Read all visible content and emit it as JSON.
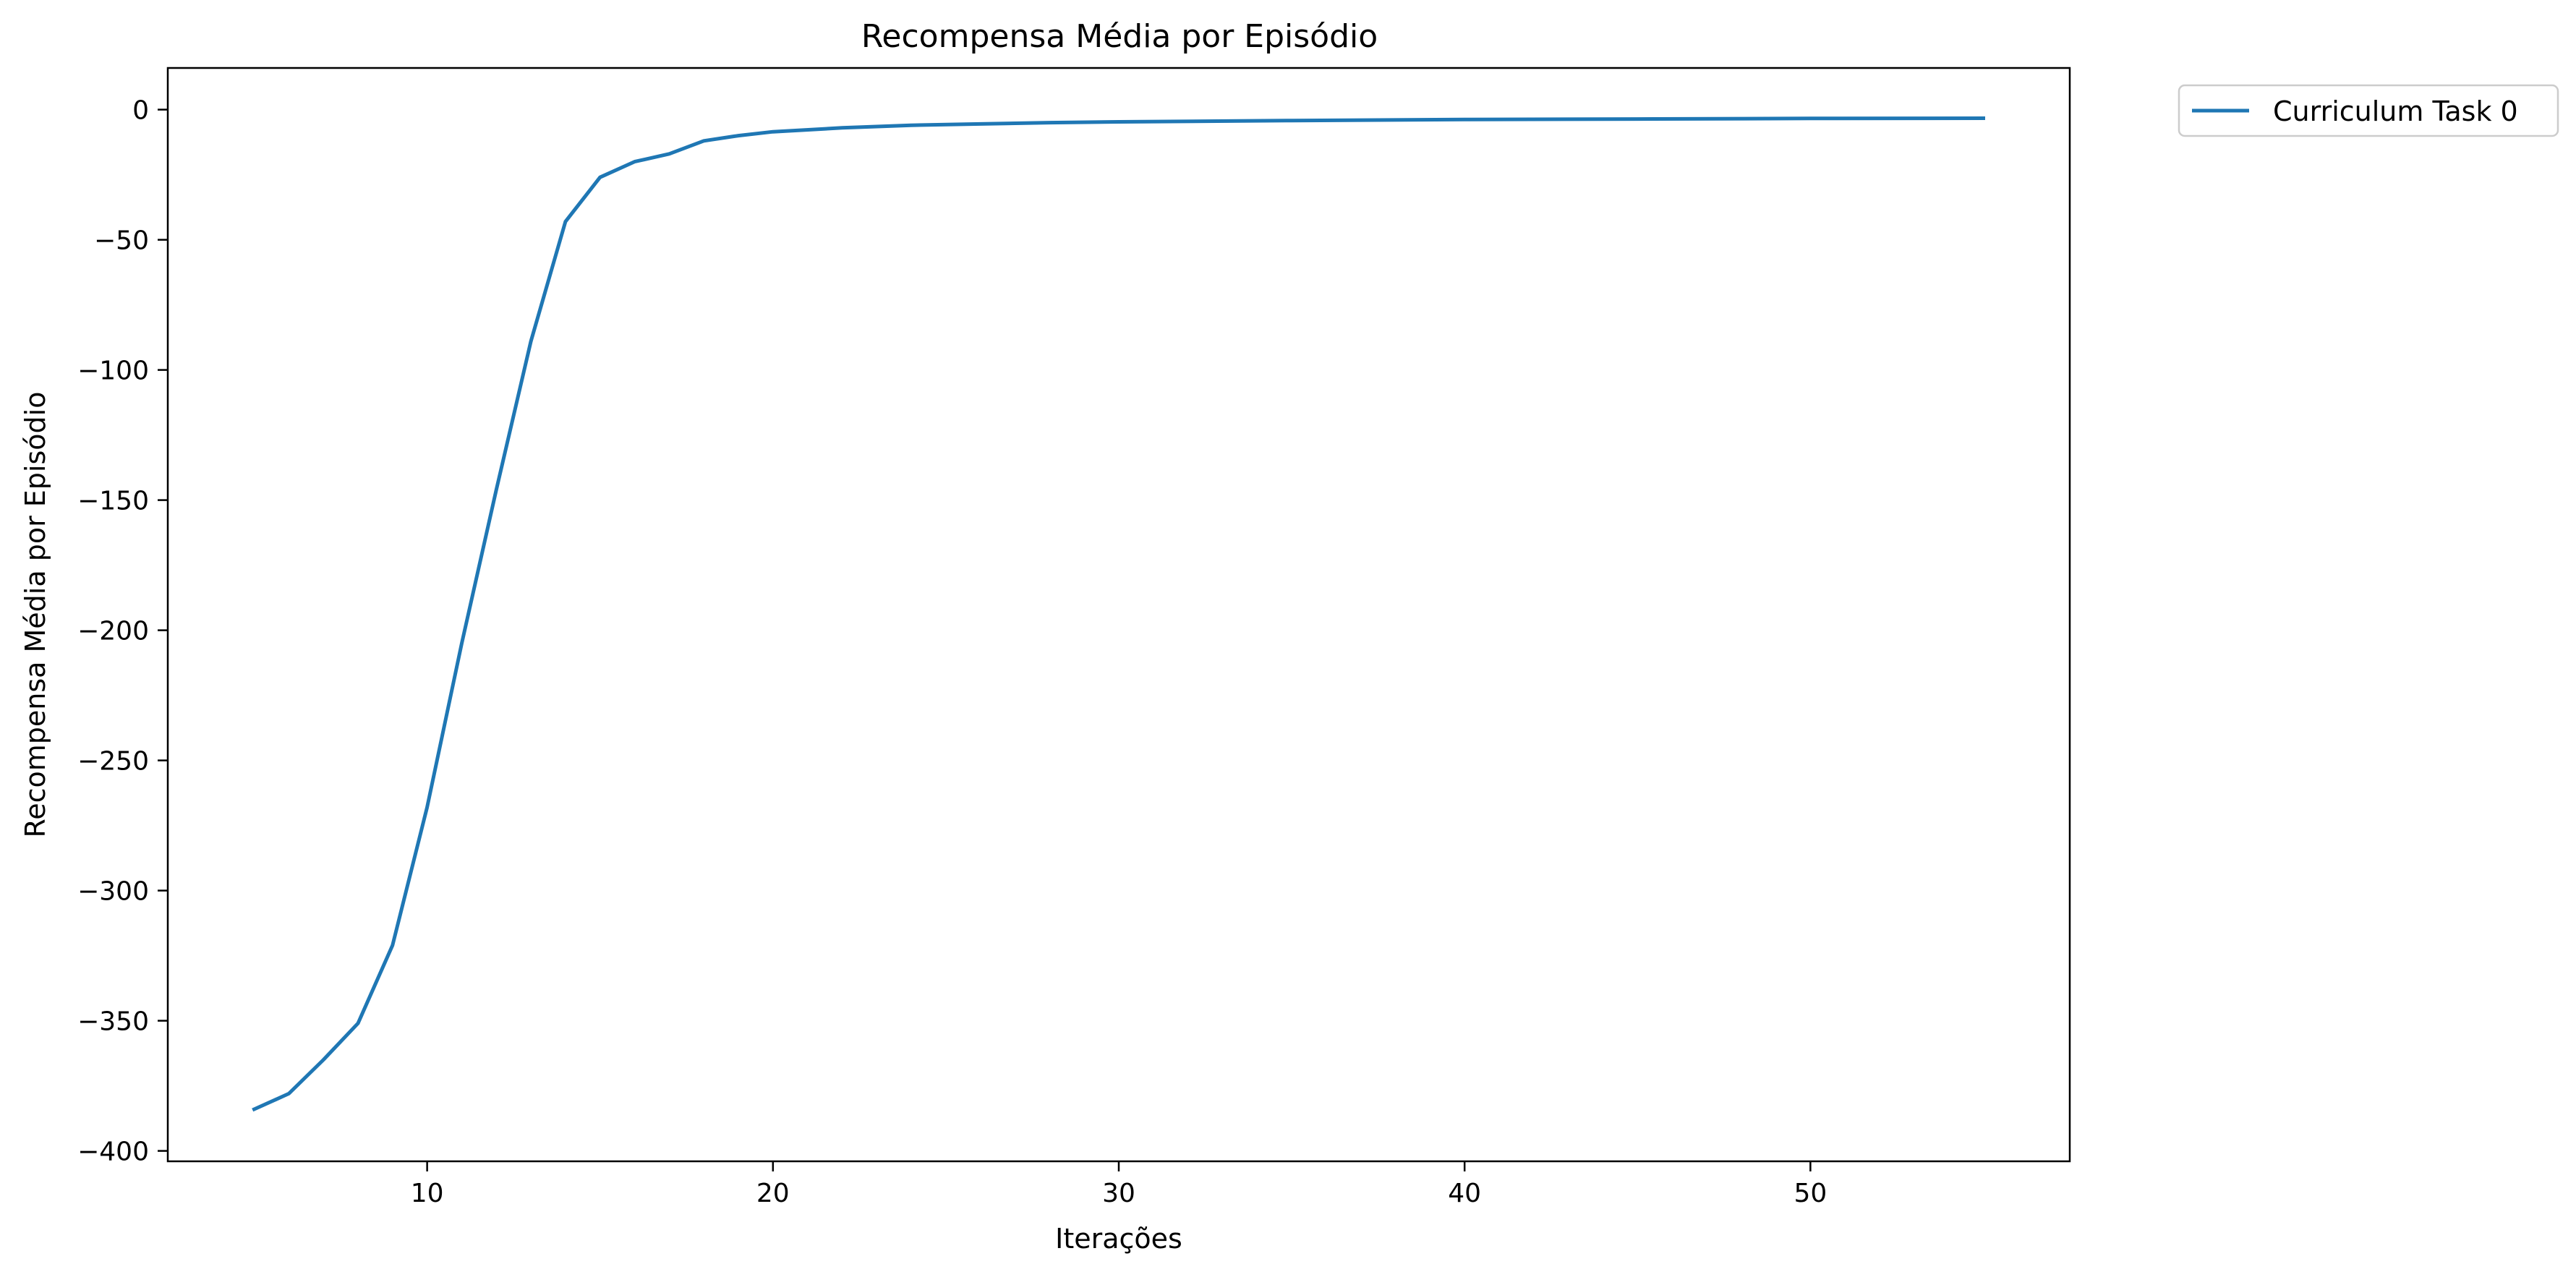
{
  "chart_data": {
    "type": "line",
    "title": "Recompensa Média por Episódio",
    "xlabel": "Iterações",
    "ylabel": "Recompensa Média por Episódio",
    "xlim": [
      2.5,
      57.5
    ],
    "ylim": [
      -404,
      16
    ],
    "xticks": [
      10,
      20,
      30,
      40,
      50
    ],
    "yticks": [
      0,
      -50,
      -100,
      -150,
      -200,
      -250,
      -300,
      -350,
      -400
    ],
    "xtick_labels": [
      "10",
      "20",
      "30",
      "40",
      "50"
    ],
    "ytick_labels": [
      "0",
      "−50",
      "−100",
      "−150",
      "−200",
      "−250",
      "−300",
      "−350",
      "−400"
    ],
    "grid": false,
    "legend": {
      "position": "outside-top-right"
    },
    "series": [
      {
        "name": "Curriculum Task 0",
        "color": "#1f77b4",
        "x": [
          5,
          6,
          7,
          8,
          9,
          10,
          11,
          12,
          13,
          14,
          15,
          16,
          17,
          18,
          19,
          20,
          22,
          24,
          26,
          28,
          30,
          35,
          40,
          45,
          50,
          55
        ],
        "y": [
          -384,
          -378,
          -365,
          -351,
          -321,
          -268,
          -205,
          -146,
          -89,
          -43,
          -26,
          -20,
          -17,
          -12,
          -10,
          -8.5,
          -7,
          -6,
          -5.5,
          -5,
          -4.7,
          -4.2,
          -3.8,
          -3.6,
          -3.4,
          -3.3
        ]
      }
    ]
  }
}
